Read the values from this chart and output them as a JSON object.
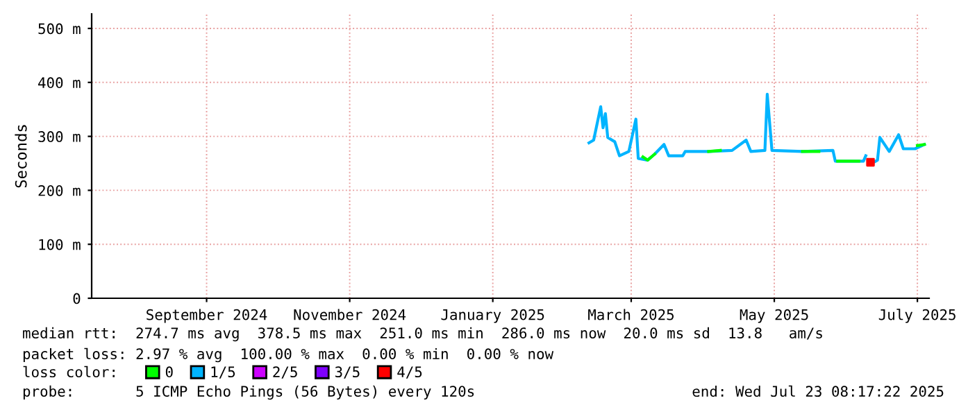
{
  "chart_data": {
    "type": "line",
    "ylabel": "Seconds",
    "xlim": [
      "2024-07-14",
      "2025-07-06"
    ],
    "xticks": [
      {
        "value": "2024-09-01",
        "label": "September 2024"
      },
      {
        "value": "2024-11-01",
        "label": "November 2024"
      },
      {
        "value": "2025-01-01",
        "label": "January 2025"
      },
      {
        "value": "2025-03-01",
        "label": "March 2025"
      },
      {
        "value": "2025-05-01",
        "label": "May 2025"
      },
      {
        "value": "2025-07-01",
        "label": "July 2025"
      }
    ],
    "ylim": [
      0,
      527
    ],
    "yticks": [
      0,
      {
        "value": 100,
        "label": "100 m"
      },
      {
        "value": 200,
        "label": "200 m"
      },
      {
        "value": 300,
        "label": "300 m"
      },
      {
        "value": 400,
        "label": "400 m"
      },
      {
        "value": 500,
        "label": "500 m"
      }
    ],
    "grid": true,
    "legend": "bottom",
    "marker": "none",
    "line_style": "solid",
    "series": [
      {
        "name": "1/5",
        "color": "#00b4ff",
        "x": [
          "2025-02-11",
          "2025-02-13",
          "2025-02-16",
          "2025-02-17",
          "2025-02-18",
          "2025-02-19",
          "2025-02-22",
          "2025-02-24",
          "2025-02-28",
          "2025-03-03",
          "2025-03-04",
          "2025-03-08",
          "2025-03-11",
          "2025-03-15",
          "2025-03-17",
          "2025-03-23",
          "2025-03-24",
          "2025-04-03",
          "2025-04-13",
          "2025-04-19",
          "2025-04-21",
          "2025-04-27",
          "2025-04-28",
          "2025-04-30",
          "2025-05-13",
          "2025-05-26",
          "2025-05-27",
          "2025-06-08",
          "2025-06-09",
          "2025-06-10",
          "2025-06-12",
          "2025-06-14",
          "2025-06-15",
          "2025-06-19",
          "2025-06-23",
          "2025-06-25",
          "2025-06-30",
          "2025-07-04"
        ],
        "values": [
          288,
          293,
          355,
          316,
          342,
          298,
          290,
          264,
          272,
          332,
          259,
          256,
          267,
          285,
          264,
          264,
          272,
          272,
          274,
          293,
          272,
          274,
          378,
          274,
          272,
          274,
          254,
          254,
          264,
          null,
          251,
          256,
          298,
          272,
          303,
          277,
          277,
          285
        ]
      },
      {
        "name": "0",
        "color": "#00ff00",
        "x": [
          "2025-03-06",
          "2025-03-08",
          "2025-03-11",
          "2025-03-12",
          "2025-04-03",
          "2025-04-08",
          "2025-04-09",
          "2025-05-13",
          "2025-05-20",
          "2025-05-21",
          "2025-05-28",
          "2025-06-06",
          "2025-06-07",
          "2025-07-01",
          "2025-07-04"
        ],
        "values": [
          262,
          256,
          267,
          null,
          272,
          274,
          null,
          272,
          272,
          null,
          254,
          254,
          null,
          283,
          285
        ]
      },
      {
        "name": "2/5",
        "color": "#cc00ff"
      },
      {
        "name": "3/5",
        "color": "#7f00ff"
      },
      {
        "name": "4/5",
        "type": "scatter",
        "marker": "square",
        "color": "#ff0000",
        "x": [
          "2025-06-11"
        ],
        "values": [
          252
        ]
      }
    ],
    "annotations": [
      "median rtt:  274.7 ms avg  378.5 ms max  251.0 ms min  286.0 ms now  20.0 ms sd  13.8   am/s",
      "packet loss: 2.97 % avg  100.00 % max  0.00 % min  0.00 % now",
      "loss color:",
      "probe:       5 ICMP Echo Pings (56 Bytes) every 120s",
      "end: Wed Jul 23 08:17:22 2025"
    ]
  }
}
